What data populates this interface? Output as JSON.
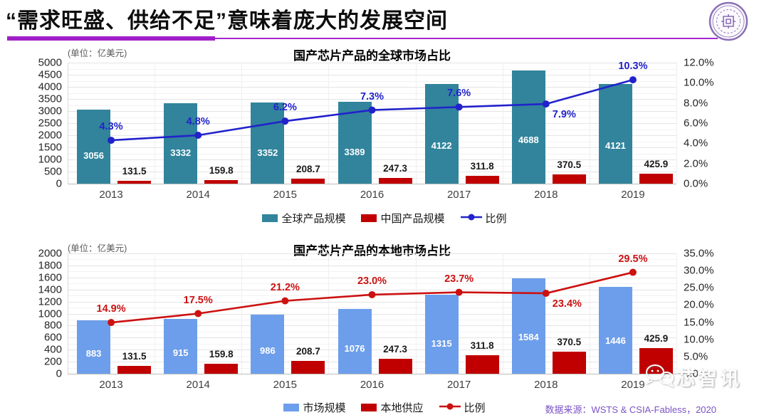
{
  "page": {
    "title": "“需求旺盛、供给不足”意味着庞大的发展空间",
    "source_note": "数据来源：WSTS & CSIA-Fabless，2020",
    "watermark": "芯智讯"
  },
  "chart_data": [
    {
      "type": "bar+line",
      "title": "国产芯片产品的全球市场占比",
      "unit_label": "(单位：亿美元)",
      "categories": [
        "2013",
        "2014",
        "2015",
        "2016",
        "2017",
        "2018",
        "2019"
      ],
      "series": [
        {
          "name": "全球产品规模",
          "kind": "bar",
          "axis": "left",
          "color": "#31849B",
          "label_color": "#FFFFFF",
          "label_placement": "inside",
          "values": [
            3056,
            3332,
            3352,
            3389,
            4122,
            4688,
            4121
          ]
        },
        {
          "name": "中国产品规模",
          "kind": "bar",
          "axis": "left",
          "color": "#C00000",
          "label_color": "#1A1A1A",
          "label_placement": "above",
          "values": [
            131.5,
            159.8,
            208.7,
            247.3,
            311.8,
            370.5,
            425.9
          ]
        },
        {
          "name": "比例",
          "kind": "line",
          "axis": "right",
          "color": "#2222CC",
          "values": [
            4.3,
            4.8,
            6.2,
            7.3,
            7.6,
            7.9,
            10.3
          ],
          "labels": [
            "4.3%",
            "4.8%",
            "6.2%",
            "7.3%",
            "7.6%",
            "7.9%",
            "10.3%"
          ],
          "label_pos": [
            "above",
            "above",
            "above",
            "above",
            "above",
            "below",
            "above"
          ]
        }
      ],
      "left_axis": {
        "min": 0,
        "max": 5000,
        "step": 500
      },
      "right_axis": {
        "min": 0,
        "max": 12,
        "step": 2,
        "format": "percent1"
      },
      "grid": true,
      "legend_position": "bottom"
    },
    {
      "type": "bar+line",
      "title": "国产芯片产品的本地市场占比",
      "unit_label": "(单位：亿美元)",
      "categories": [
        "2013",
        "2014",
        "2015",
        "2016",
        "2017",
        "2018",
        "2019"
      ],
      "series": [
        {
          "name": "市场规模",
          "kind": "bar",
          "axis": "left",
          "color": "#6D9EEB",
          "label_color": "#FFFFFF",
          "label_placement": "inside",
          "values": [
            883,
            915,
            986,
            1076,
            1315,
            1584,
            1446
          ]
        },
        {
          "name": "本地供应",
          "kind": "bar",
          "axis": "left",
          "color": "#C00000",
          "label_color": "#1A1A1A",
          "label_placement": "above",
          "values": [
            131.5,
            159.8,
            208.7,
            247.3,
            311.8,
            370.5,
            425.9
          ]
        },
        {
          "name": "比例",
          "kind": "line",
          "axis": "right",
          "color": "#CC1111",
          "values": [
            14.9,
            17.5,
            21.2,
            23.0,
            23.7,
            23.4,
            29.5
          ],
          "labels": [
            "14.9%",
            "17.5%",
            "21.2%",
            "23.0%",
            "23.7%",
            "23.4%",
            "29.5%"
          ],
          "label_pos": [
            "above",
            "above",
            "above",
            "above",
            "above",
            "below",
            "above"
          ]
        }
      ],
      "left_axis": {
        "min": 0,
        "max": 2000,
        "step": 200
      },
      "right_axis": {
        "min": 0,
        "max": 35,
        "step": 5,
        "format": "percent1"
      },
      "grid": true,
      "legend_position": "bottom"
    }
  ]
}
